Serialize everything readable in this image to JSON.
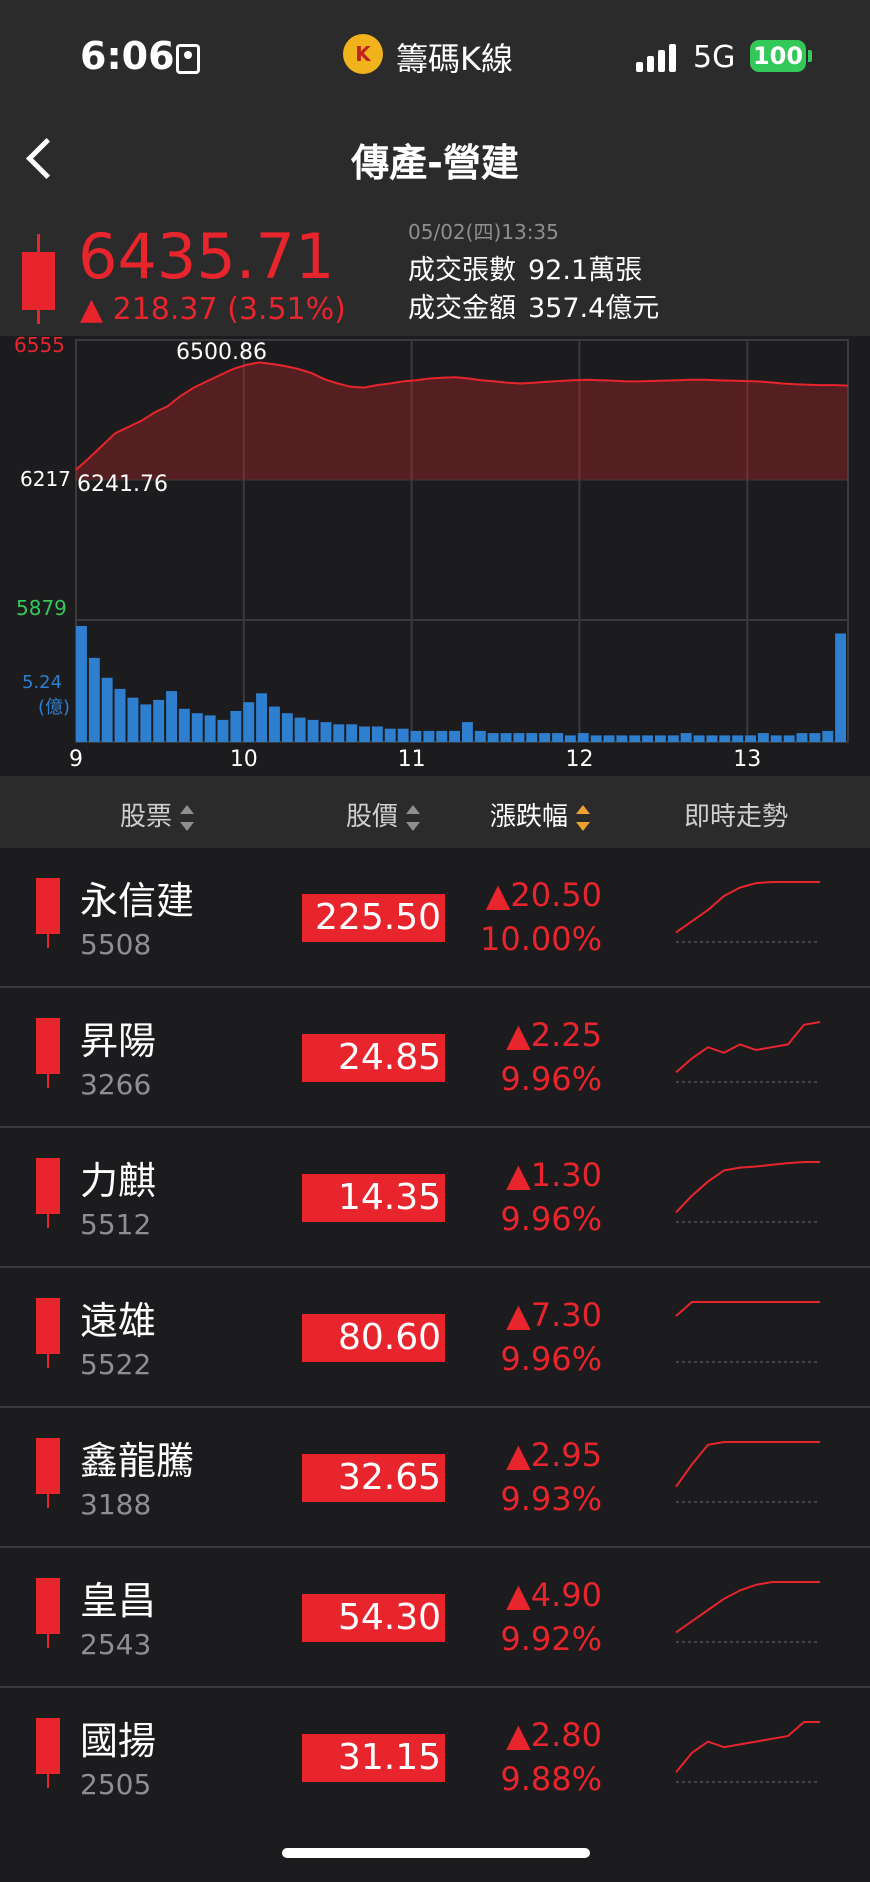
{
  "status_bar": {
    "time": "6:06",
    "app_logo": "K",
    "app_name": "籌碼K線",
    "network": "5G",
    "battery": "100"
  },
  "nav": {
    "title": "傳產-營建"
  },
  "summary": {
    "price": "6435.71",
    "change": "▲ 218.37 (3.51%)",
    "datetime": "05/02(四)13:35",
    "volume_label": "成交張數",
    "volume_value": "92.1萬張",
    "amount_label": "成交金額",
    "amount_value": "357.4億元"
  },
  "chart_data": {
    "type": "area",
    "y_axis_labels": [
      "6555",
      "6217",
      "5879"
    ],
    "high_label": "6500.86",
    "low_label": "6241.76",
    "volume_axis_label": "5.24",
    "volume_unit": "(億)",
    "x_labels": [
      "9",
      "10",
      "11",
      "12",
      "13"
    ],
    "ylim": [
      5879,
      6555
    ],
    "colors": {
      "price": "#e8242c",
      "volume": "#2f7fd0",
      "up_axis": "#e8242c",
      "down_axis": "#34c759",
      "volume_axis": "#2f7fd0"
    },
    "price_series": [
      6241.76,
      6270,
      6300,
      6330,
      6345,
      6360,
      6380,
      6395,
      6420,
      6440,
      6455,
      6470,
      6485,
      6495,
      6500.86,
      6497,
      6492,
      6485,
      6475,
      6460,
      6450,
      6442,
      6440,
      6446,
      6450,
      6455,
      6458,
      6462,
      6464,
      6465,
      6462,
      6458,
      6455,
      6452,
      6450,
      6452,
      6454,
      6456,
      6458,
      6459,
      6458,
      6457,
      6455,
      6455,
      6456,
      6457,
      6458,
      6459,
      6459,
      6458,
      6457,
      6456,
      6455,
      6453,
      6450,
      6448,
      6447,
      6446,
      6446,
      6445
    ],
    "volume_series": [
      5.24,
      3.8,
      2.9,
      2.4,
      2.0,
      1.7,
      1.9,
      2.3,
      1.5,
      1.3,
      1.2,
      1.0,
      1.4,
      1.8,
      2.2,
      1.6,
      1.3,
      1.1,
      1.0,
      0.9,
      0.8,
      0.8,
      0.7,
      0.7,
      0.6,
      0.6,
      0.5,
      0.5,
      0.5,
      0.5,
      0.9,
      0.5,
      0.4,
      0.4,
      0.4,
      0.4,
      0.4,
      0.4,
      0.3,
      0.4,
      0.3,
      0.3,
      0.3,
      0.3,
      0.3,
      0.3,
      0.3,
      0.4,
      0.3,
      0.3,
      0.3,
      0.3,
      0.3,
      0.4,
      0.3,
      0.3,
      0.4,
      0.4,
      0.5,
      4.9
    ]
  },
  "table": {
    "headers": {
      "stock": "股票",
      "price": "股價",
      "change": "漲跌幅",
      "trend": "即時走勢"
    },
    "rows": [
      {
        "name": "永信建",
        "code": "5508",
        "price": "225.50",
        "change": "▲20.50",
        "pct": "10.00%",
        "spark": [
          0.1,
          0.3,
          0.5,
          0.75,
          0.9,
          0.98,
          1,
          1,
          1,
          1
        ]
      },
      {
        "name": "昇陽",
        "code": "3266",
        "price": "24.85",
        "change": "▲2.25",
        "pct": "9.96%",
        "spark": [
          0.1,
          0.35,
          0.55,
          0.45,
          0.6,
          0.5,
          0.55,
          0.6,
          0.95,
          1
        ]
      },
      {
        "name": "力麒",
        "code": "5512",
        "price": "14.35",
        "change": "▲1.30",
        "pct": "9.96%",
        "spark": [
          0.1,
          0.4,
          0.65,
          0.85,
          0.9,
          0.92,
          0.95,
          0.98,
          1,
          1
        ]
      },
      {
        "name": "遠雄",
        "code": "5522",
        "price": "80.60",
        "change": "▲7.30",
        "pct": "9.96%",
        "spark": [
          0.75,
          1,
          1,
          1,
          1,
          1,
          1,
          1,
          1,
          1
        ]
      },
      {
        "name": "鑫龍騰",
        "code": "3188",
        "price": "32.65",
        "change": "▲2.95",
        "pct": "9.93%",
        "spark": [
          0.2,
          0.6,
          0.95,
          1,
          1,
          1,
          1,
          1,
          1,
          1
        ]
      },
      {
        "name": "皇昌",
        "code": "2543",
        "price": "54.30",
        "change": "▲4.90",
        "pct": "9.92%",
        "spark": [
          0.1,
          0.3,
          0.5,
          0.7,
          0.85,
          0.95,
          1,
          1,
          1,
          1
        ]
      },
      {
        "name": "國揚",
        "code": "2505",
        "price": "31.15",
        "change": "▲2.80",
        "pct": "9.88%",
        "spark": [
          0.1,
          0.45,
          0.65,
          0.55,
          0.6,
          0.65,
          0.7,
          0.75,
          1,
          1
        ]
      }
    ]
  }
}
